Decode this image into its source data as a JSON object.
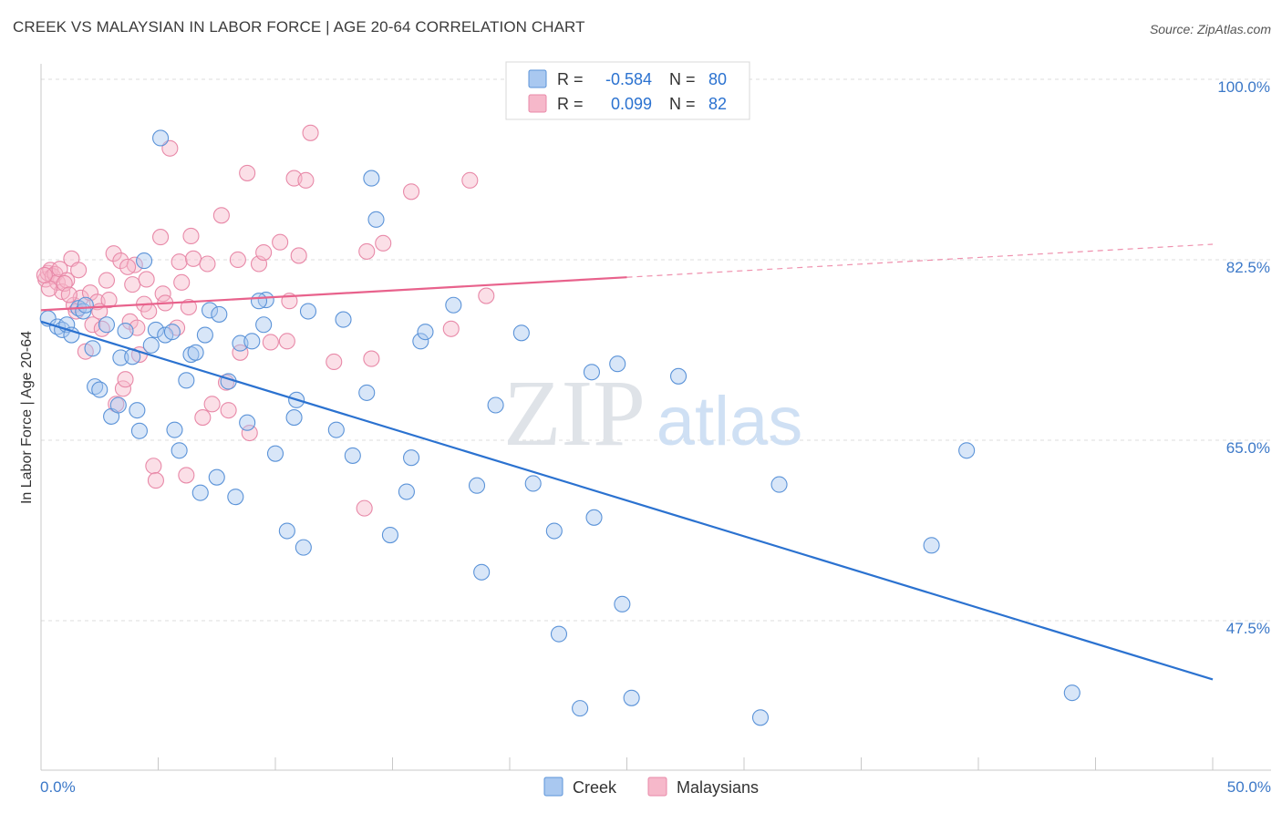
{
  "title": "CREEK VS MALAYSIAN IN LABOR FORCE | AGE 20-64 CORRELATION CHART",
  "source": "Source: ZipAtlas.com",
  "watermark": {
    "zip": "ZIP",
    "atlas": "atlas"
  },
  "colors": {
    "creek_fill": "#a9c8f0",
    "creek_stroke": "#5b93d8",
    "creek_line": "#2b72d0",
    "malay_fill": "#f6b8ca",
    "malay_stroke": "#e889a8",
    "malay_line": "#e8628c",
    "tick_label": "#3b78c8",
    "grid": "#dcdcdc"
  },
  "legend_top": {
    "rows": [
      {
        "r_label": "R =",
        "r_value": "-0.584",
        "n_label": "N =",
        "n_value": "80"
      },
      {
        "r_label": "R =",
        "r_value": "0.099",
        "n_label": "N =",
        "n_value": "82"
      }
    ]
  },
  "chart_data": {
    "type": "scatter",
    "title": "CREEK VS MALAYSIAN IN LABOR FORCE | AGE 20-64 CORRELATION CHART",
    "ylabel": "In Labor Force | Age 20-64",
    "xlabel": "",
    "xlim": [
      0,
      50
    ],
    "ylim": [
      33,
      101.5
    ],
    "x_tick_labels": [
      "0.0%",
      "50.0%"
    ],
    "y_ticks": [
      {
        "value": 100,
        "label": "100.0%"
      },
      {
        "value": 82.5,
        "label": "82.5%"
      },
      {
        "value": 65,
        "label": "65.0%"
      },
      {
        "value": 47.5,
        "label": "47.5%"
      }
    ],
    "grid": true,
    "legend_position": "bottom",
    "series": [
      {
        "name": "Creek",
        "r": -0.584,
        "n": 80,
        "trend": {
          "x": [
            0,
            50
          ],
          "y": [
            76.5,
            41.8
          ],
          "dashed_from": null
        },
        "points": [
          [
            5.1,
            94.3
          ],
          [
            14.1,
            90.4
          ],
          [
            14.3,
            86.4
          ],
          [
            0.3,
            76.8
          ],
          [
            0.7,
            76.0
          ],
          [
            0.9,
            75.7
          ],
          [
            1.1,
            76.2
          ],
          [
            1.3,
            75.2
          ],
          [
            1.6,
            77.8
          ],
          [
            1.8,
            77.5
          ],
          [
            1.9,
            78.1
          ],
          [
            2.2,
            73.9
          ],
          [
            2.3,
            70.2
          ],
          [
            2.5,
            69.9
          ],
          [
            2.8,
            76.2
          ],
          [
            3.0,
            67.3
          ],
          [
            3.4,
            73.0
          ],
          [
            3.6,
            75.6
          ],
          [
            3.9,
            73.1
          ],
          [
            4.1,
            67.9
          ],
          [
            4.2,
            65.9
          ],
          [
            4.4,
            82.4
          ],
          [
            4.7,
            74.2
          ],
          [
            4.9,
            75.7
          ],
          [
            5.3,
            75.2
          ],
          [
            5.6,
            75.5
          ],
          [
            5.7,
            66.0
          ],
          [
            5.9,
            64.0
          ],
          [
            6.2,
            70.8
          ],
          [
            6.4,
            73.3
          ],
          [
            6.6,
            73.5
          ],
          [
            6.8,
            59.9
          ],
          [
            7.0,
            75.2
          ],
          [
            7.2,
            77.6
          ],
          [
            7.5,
            61.4
          ],
          [
            7.6,
            77.2
          ],
          [
            8.0,
            70.7
          ],
          [
            8.3,
            59.5
          ],
          [
            8.5,
            74.4
          ],
          [
            8.8,
            66.7
          ],
          [
            9.0,
            74.6
          ],
          [
            9.5,
            76.2
          ],
          [
            9.6,
            78.6
          ],
          [
            10.0,
            63.7
          ],
          [
            10.5,
            56.2
          ],
          [
            10.8,
            67.2
          ],
          [
            10.9,
            68.9
          ],
          [
            11.2,
            54.6
          ],
          [
            11.4,
            77.5
          ],
          [
            12.6,
            66.0
          ],
          [
            12.9,
            76.7
          ],
          [
            13.3,
            63.5
          ],
          [
            13.9,
            69.6
          ],
          [
            14.9,
            55.8
          ],
          [
            15.6,
            60.0
          ],
          [
            15.8,
            63.3
          ],
          [
            16.2,
            74.6
          ],
          [
            16.4,
            75.5
          ],
          [
            17.6,
            78.1
          ],
          [
            18.6,
            60.6
          ],
          [
            18.8,
            52.2
          ],
          [
            19.4,
            68.4
          ],
          [
            20.5,
            75.4
          ],
          [
            21.0,
            60.8
          ],
          [
            21.9,
            56.2
          ],
          [
            22.1,
            46.2
          ],
          [
            23.0,
            39.0
          ],
          [
            23.5,
            71.6
          ],
          [
            23.6,
            57.5
          ],
          [
            24.6,
            72.4
          ],
          [
            24.8,
            49.1
          ],
          [
            25.2,
            40.0
          ],
          [
            27.2,
            71.2
          ],
          [
            30.7,
            38.1
          ],
          [
            31.5,
            60.7
          ],
          [
            38.0,
            54.8
          ],
          [
            39.5,
            64.0
          ],
          [
            44.0,
            40.5
          ],
          [
            9.3,
            78.5
          ],
          [
            3.3,
            68.4
          ]
        ]
      },
      {
        "name": "Malaysians",
        "r": 0.099,
        "n": 82,
        "trend": {
          "x": [
            0,
            50
          ],
          "y": [
            77.6,
            84.0
          ],
          "dashed_from": 25.0
        },
        "points": [
          [
            0.2,
            80.6
          ],
          [
            0.3,
            81.2
          ],
          [
            0.4,
            81.5
          ],
          [
            0.5,
            80.9
          ],
          [
            0.6,
            81.1
          ],
          [
            0.7,
            80.3
          ],
          [
            0.8,
            81.6
          ],
          [
            0.9,
            79.4
          ],
          [
            1.1,
            80.5
          ],
          [
            1.3,
            82.6
          ],
          [
            1.4,
            78.1
          ],
          [
            1.5,
            77.5
          ],
          [
            1.6,
            81.5
          ],
          [
            1.7,
            78.8
          ],
          [
            1.9,
            73.6
          ],
          [
            2.1,
            79.3
          ],
          [
            2.2,
            76.2
          ],
          [
            2.4,
            78.4
          ],
          [
            2.6,
            75.8
          ],
          [
            2.8,
            80.5
          ],
          [
            2.9,
            78.6
          ],
          [
            3.1,
            83.1
          ],
          [
            3.2,
            68.5
          ],
          [
            3.4,
            82.4
          ],
          [
            3.5,
            70.0
          ],
          [
            3.6,
            70.9
          ],
          [
            3.8,
            76.5
          ],
          [
            3.9,
            80.1
          ],
          [
            4.1,
            75.9
          ],
          [
            4.2,
            73.3
          ],
          [
            4.4,
            78.2
          ],
          [
            4.5,
            80.6
          ],
          [
            4.6,
            77.5
          ],
          [
            4.8,
            62.5
          ],
          [
            4.9,
            61.1
          ],
          [
            5.1,
            84.7
          ],
          [
            5.2,
            79.2
          ],
          [
            5.3,
            78.3
          ],
          [
            5.5,
            93.3
          ],
          [
            5.8,
            75.9
          ],
          [
            5.9,
            82.3
          ],
          [
            6.0,
            80.3
          ],
          [
            6.2,
            61.6
          ],
          [
            6.4,
            84.8
          ],
          [
            6.5,
            82.6
          ],
          [
            6.9,
            67.2
          ],
          [
            7.1,
            82.1
          ],
          [
            7.3,
            68.5
          ],
          [
            7.7,
            86.8
          ],
          [
            7.9,
            70.6
          ],
          [
            8.0,
            67.9
          ],
          [
            8.4,
            82.5
          ],
          [
            8.5,
            73.5
          ],
          [
            8.8,
            90.9
          ],
          [
            8.9,
            65.7
          ],
          [
            9.3,
            82.1
          ],
          [
            9.5,
            83.2
          ],
          [
            9.8,
            74.5
          ],
          [
            10.2,
            84.2
          ],
          [
            10.5,
            74.6
          ],
          [
            10.6,
            78.5
          ],
          [
            10.8,
            90.4
          ],
          [
            11.0,
            82.9
          ],
          [
            11.3,
            90.2
          ],
          [
            11.5,
            94.8
          ],
          [
            12.5,
            72.6
          ],
          [
            13.8,
            58.4
          ],
          [
            13.9,
            83.3
          ],
          [
            14.1,
            72.9
          ],
          [
            14.6,
            84.1
          ],
          [
            15.8,
            89.1
          ],
          [
            17.5,
            75.8
          ],
          [
            18.3,
            90.2
          ],
          [
            19.0,
            79.0
          ],
          [
            1.0,
            80.2
          ],
          [
            2.5,
            77.5
          ],
          [
            4.0,
            82.0
          ],
          [
            0.35,
            79.7
          ],
          [
            1.2,
            79.1
          ],
          [
            6.3,
            77.9
          ],
          [
            0.15,
            81.0
          ],
          [
            3.7,
            81.8
          ]
        ]
      }
    ]
  },
  "legend_bottom": {
    "items": [
      "Creek",
      "Malaysians"
    ]
  }
}
